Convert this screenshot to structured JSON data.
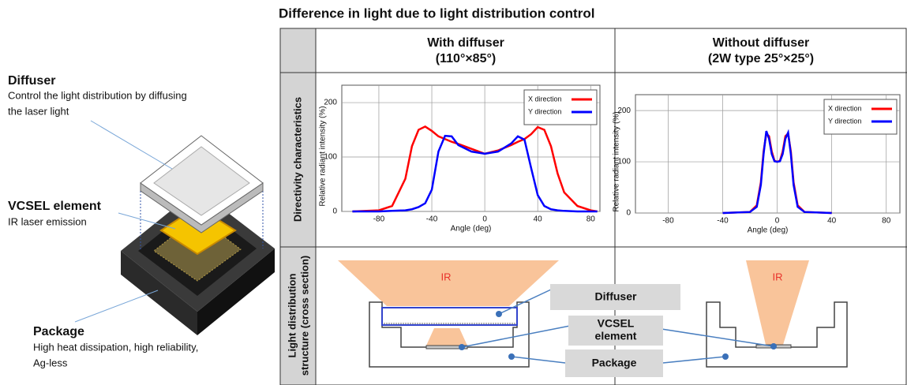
{
  "title": "Difference in light due to light distribution control",
  "callouts": [
    {
      "title": "Diffuser",
      "lines": [
        "Control the light distribution by diffusing",
        "the laser light"
      ]
    },
    {
      "title": "VCSEL element",
      "lines": [
        "IR laser emission"
      ]
    },
    {
      "title": "Package",
      "lines": [
        "High heat dissipation, high reliability,",
        "Ag-less"
      ]
    }
  ],
  "table": {
    "headers": [
      [
        "With diffuser",
        "(110°×85°)"
      ],
      [
        "Without diffuser",
        "(2W type 25°×25°)"
      ]
    ],
    "row_labels": [
      [
        "Directivity characteristics"
      ],
      [
        "Light distribution",
        "structure (cross section)"
      ]
    ]
  },
  "chart_data": [
    {
      "type": "line",
      "x_label": "Angle (deg)",
      "y_label": "Relative radiant intensity (%)",
      "x": [
        -100,
        -80,
        -70,
        -60,
        -55,
        -50,
        -45,
        -40,
        -35,
        -30,
        -25,
        -20,
        -10,
        0,
        10,
        20,
        25,
        30,
        35,
        40,
        45,
        50,
        55,
        60,
        70,
        80,
        85
      ],
      "series": [
        {
          "name": "X direction",
          "color": "#ff0000",
          "values": [
            0,
            2,
            10,
            60,
            120,
            150,
            156,
            148,
            138,
            133,
            128,
            124,
            115,
            106,
            112,
            122,
            128,
            133,
            142,
            155,
            150,
            120,
            70,
            35,
            10,
            2,
            0
          ]
        },
        {
          "name": "Y direction",
          "color": "#0000ff",
          "values": [
            0,
            0,
            1,
            2,
            4,
            8,
            15,
            40,
            110,
            139,
            138,
            122,
            110,
            106,
            110,
            125,
            138,
            132,
            80,
            30,
            10,
            4,
            2,
            1,
            0,
            0,
            0
          ]
        }
      ],
      "xlim": [
        -108,
        87
      ],
      "ylim": [
        0,
        232
      ],
      "xticks": [
        -80,
        -40,
        0,
        40,
        80
      ],
      "yticks": [
        0,
        100,
        200
      ],
      "grid": true,
      "legend": "upper right"
    },
    {
      "type": "line",
      "x_label": "Angle (deg)",
      "y_label": "Relative radiant intensity (%)",
      "x": [
        -40,
        -20,
        -15,
        -12,
        -10,
        -8,
        -6,
        -4,
        -2,
        0,
        2,
        4,
        6,
        8,
        10,
        12,
        15,
        20,
        40
      ],
      "series": [
        {
          "name": "X direction",
          "color": "#ff0000",
          "values": [
            0,
            2,
            15,
            60,
            120,
            155,
            150,
            120,
            102,
            100,
            102,
            120,
            150,
            155,
            120,
            60,
            15,
            2,
            0
          ]
        },
        {
          "name": "Y direction",
          "color": "#0000ff",
          "values": [
            0,
            2,
            12,
            55,
            115,
            160,
            145,
            115,
            101,
            100,
            101,
            115,
            145,
            157,
            115,
            55,
            12,
            2,
            0
          ]
        }
      ],
      "xlim": [
        -104,
        90
      ],
      "ylim": [
        0,
        231
      ],
      "xticks": [
        -80,
        -40,
        0,
        40,
        80
      ],
      "yticks": [
        0,
        100,
        200
      ],
      "grid": true,
      "legend": "upper right"
    }
  ],
  "cross_section": {
    "beam_labels": [
      "IR",
      "IR"
    ],
    "parts": [
      [
        "Diffuser"
      ],
      [
        "VCSEL",
        "element"
      ],
      [
        "Package"
      ]
    ]
  }
}
